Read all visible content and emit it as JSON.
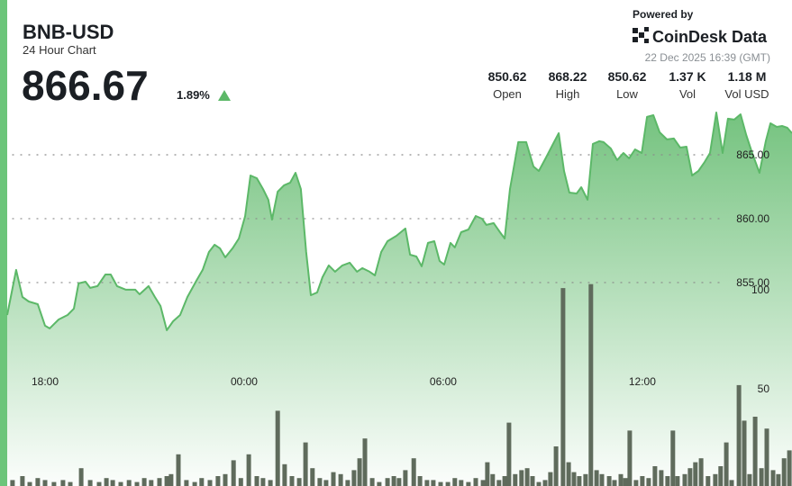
{
  "chart_data": {
    "type": "line",
    "title": "BNB-USD",
    "subtitle": "24 Hour Chart",
    "price": "866.67",
    "change": "1.89%",
    "powered_by": "Powered by",
    "brand": "CoinDesk Data",
    "timestamp": "22 Dec 2025 16:39 (GMT)",
    "stats": [
      {
        "value": "850.62",
        "label": "Open"
      },
      {
        "value": "868.22",
        "label": "High"
      },
      {
        "value": "850.62",
        "label": "Low"
      },
      {
        "value": "1.37 K",
        "label": "Vol"
      },
      {
        "value": "1.18 M",
        "label": "Vol USD"
      }
    ],
    "xlim": [
      0,
      23.65
    ],
    "xticks": [
      {
        "value": 1.14,
        "label": "18:00"
      },
      {
        "value": 7.14,
        "label": "00:00"
      },
      {
        "value": 13.14,
        "label": "06:00"
      },
      {
        "value": 19.14,
        "label": "12:00"
      }
    ],
    "ylim": [
      839.08,
      868.66
    ],
    "yticks": [
      {
        "value": 855,
        "label": "855.00"
      },
      {
        "value": 860,
        "label": "860.00"
      },
      {
        "value": 865,
        "label": "865.00"
      }
    ],
    "y2lim": [
      0,
      191
    ],
    "y2ticks": [
      50,
      100
    ],
    "grid": true,
    "series": [
      {
        "name": "Price",
        "type": "line",
        "color": "#5cb868",
        "x": [
          0.0,
          0.27,
          0.46,
          0.65,
          0.92,
          1.14,
          1.28,
          1.55,
          1.82,
          2.01,
          2.15,
          2.36,
          2.5,
          2.72,
          2.96,
          3.12,
          3.31,
          3.58,
          3.86,
          3.99,
          4.26,
          4.45,
          4.62,
          4.81,
          5.0,
          5.21,
          5.43,
          5.7,
          5.89,
          6.08,
          6.25,
          6.41,
          6.57,
          6.79,
          6.98,
          7.17,
          7.33,
          7.52,
          7.71,
          7.87,
          7.98,
          8.15,
          8.34,
          8.53,
          8.69,
          8.85,
          9.01,
          9.15,
          9.34,
          9.5,
          9.69,
          9.88,
          10.1,
          10.32,
          10.54,
          10.7,
          10.92,
          11.08,
          11.27,
          11.46,
          11.73,
          12.0,
          12.14,
          12.33,
          12.49,
          12.68,
          12.87,
          13.03,
          13.17,
          13.36,
          13.49,
          13.68,
          13.9,
          14.12,
          14.31,
          14.44,
          14.66,
          14.85,
          14.99,
          15.15,
          15.4,
          15.64,
          15.86,
          16.02,
          16.24,
          16.45,
          16.62,
          16.78,
          16.94,
          17.16,
          17.3,
          17.49,
          17.65,
          17.84,
          17.97,
          18.19,
          18.38,
          18.57,
          18.74,
          18.92,
          19.12,
          19.28,
          19.47,
          19.66,
          19.88,
          20.09,
          20.28,
          20.47,
          20.64,
          20.83,
          21.02,
          21.18,
          21.37,
          21.56,
          21.72,
          21.91,
          22.1,
          22.27,
          22.45,
          22.67,
          22.86,
          23.0,
          23.19,
          23.35,
          23.51,
          23.65
        ],
        "values": [
          852.46,
          855.99,
          853.87,
          853.52,
          853.31,
          851.62,
          851.41,
          852.11,
          852.46,
          852.96,
          854.93,
          855.07,
          854.58,
          854.72,
          855.63,
          855.63,
          854.72,
          854.44,
          854.44,
          854.08,
          854.72,
          853.87,
          853.17,
          851.27,
          851.97,
          852.46,
          853.87,
          855.14,
          855.99,
          857.39,
          857.96,
          857.68,
          856.97,
          857.68,
          858.45,
          860.21,
          863.38,
          863.17,
          862.32,
          861.48,
          859.93,
          862.11,
          862.61,
          862.82,
          863.59,
          862.32,
          857.39,
          854.01,
          854.23,
          855.42,
          856.34,
          855.85,
          856.34,
          856.55,
          855.85,
          856.13,
          855.85,
          855.56,
          857.39,
          858.24,
          858.66,
          859.23,
          857.18,
          857.04,
          856.27,
          858.1,
          858.24,
          856.69,
          856.41,
          858.1,
          857.75,
          858.94,
          859.15,
          860.21,
          860.0,
          859.51,
          859.65,
          858.94,
          858.45,
          862.32,
          865.99,
          865.99,
          864.08,
          863.73,
          864.79,
          865.85,
          866.69,
          863.73,
          862.04,
          861.97,
          862.46,
          861.48,
          865.85,
          866.06,
          865.99,
          865.49,
          864.58,
          865.14,
          864.72,
          865.42,
          865.14,
          867.96,
          868.1,
          866.76,
          866.2,
          866.27,
          865.56,
          865.63,
          863.38,
          863.73,
          864.44,
          865.14,
          868.31,
          865.14,
          867.82,
          867.75,
          868.17,
          866.55,
          865.14,
          863.59,
          866.06,
          867.46,
          867.18,
          867.25,
          867.11,
          866.69
        ]
      },
      {
        "name": "Volume",
        "type": "bar",
        "axis": "y2",
        "color": "#5f6b5c",
        "x": [
          0.16,
          0.46,
          0.68,
          0.92,
          1.14,
          1.41,
          1.68,
          1.9,
          2.23,
          2.5,
          2.77,
          2.99,
          3.18,
          3.42,
          3.67,
          3.91,
          4.13,
          4.34,
          4.59,
          4.81,
          4.94,
          5.16,
          5.4,
          5.65,
          5.86,
          6.11,
          6.35,
          6.57,
          6.82,
          7.04,
          7.28,
          7.52,
          7.71,
          7.93,
          8.15,
          8.36,
          8.58,
          8.8,
          8.99,
          9.2,
          9.42,
          9.61,
          9.83,
          10.05,
          10.26,
          10.45,
          10.62,
          10.78,
          11.0,
          11.21,
          11.46,
          11.65,
          11.81,
          12.0,
          12.25,
          12.44,
          12.65,
          12.84,
          13.06,
          13.28,
          13.49,
          13.68,
          13.9,
          14.12,
          14.34,
          14.47,
          14.63,
          14.82,
          14.99,
          15.12,
          15.31,
          15.5,
          15.67,
          15.83,
          16.02,
          16.21,
          16.37,
          16.54,
          16.75,
          16.92,
          17.08,
          17.24,
          17.43,
          17.59,
          17.76,
          17.92,
          18.14,
          18.3,
          18.49,
          18.63,
          18.76,
          18.95,
          19.14,
          19.33,
          19.52,
          19.71,
          19.9,
          20.06,
          20.2,
          20.42,
          20.58,
          20.74,
          20.91,
          21.12,
          21.34,
          21.5,
          21.67,
          21.83,
          22.05,
          22.21,
          22.37,
          22.54,
          22.73,
          22.89,
          23.08,
          23.24,
          23.41,
          23.57
        ],
        "values": [
          3,
          5,
          2,
          4,
          3,
          2,
          3,
          2,
          9,
          3,
          2,
          4,
          3,
          2,
          3,
          2,
          4,
          3,
          4,
          5,
          6,
          16,
          3,
          2,
          4,
          3,
          5,
          6,
          13,
          4,
          16,
          5,
          4,
          3,
          38,
          11,
          5,
          4,
          22,
          9,
          4,
          3,
          7,
          6,
          3,
          8,
          14,
          24,
          4,
          2,
          4,
          5,
          4,
          8,
          14,
          5,
          3,
          3,
          2,
          2,
          4,
          3,
          2,
          4,
          3,
          12,
          6,
          3,
          5,
          32,
          6,
          8,
          9,
          5,
          2,
          3,
          7,
          20,
          100,
          12,
          7,
          5,
          6,
          102,
          8,
          6,
          5,
          3,
          6,
          4,
          28,
          3,
          5,
          4,
          10,
          8,
          5,
          28,
          5,
          6,
          9,
          12,
          14,
          5,
          6,
          10,
          22,
          3,
          51,
          33,
          6,
          35,
          9,
          29,
          8,
          6,
          14,
          18
        ]
      }
    ]
  }
}
